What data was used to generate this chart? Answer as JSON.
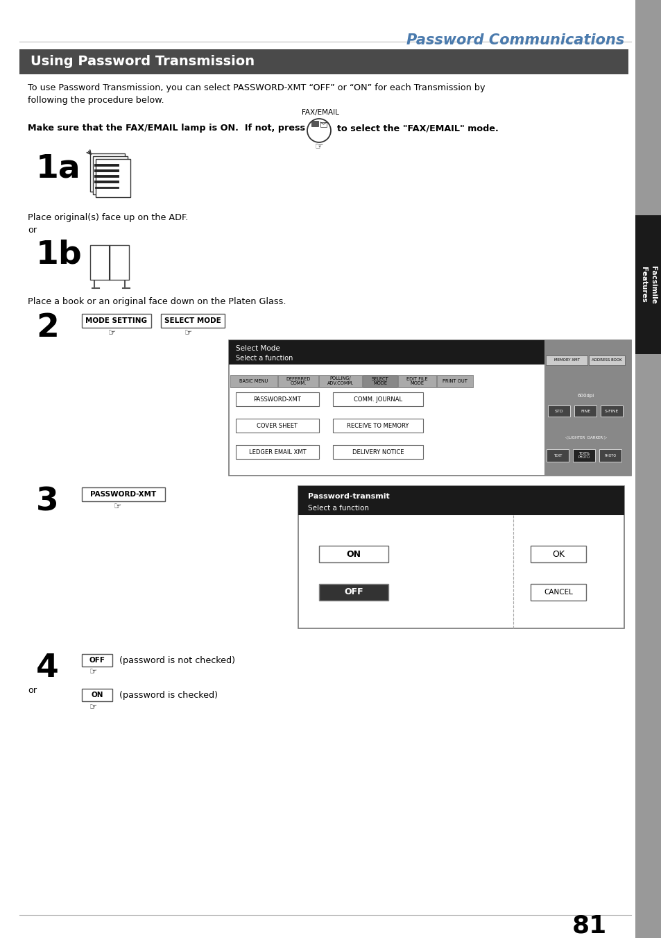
{
  "page_title": "Password Communications",
  "section_title": "Using Password Transmission",
  "body_text_1": "To use Password Transmission, you can select PASSWORD-XMT “OFF” or “ON” for each Transmission by\nfollowing the procedure below.",
  "fax_email_label": "FAX/EMAIL",
  "bold_instruction": "Make sure that the FAX/EMAIL lamp is ON.  If not, press",
  "bold_instruction_end": "to select the \"FAX/EMAIL\" mode.",
  "step1a_label": "1a",
  "step1a_text": "Place original(s) face up on the ADF.",
  "step1a_or": "or",
  "step1b_label": "1b",
  "step1b_text": "Place a book or an original face down on the Platen Glass.",
  "step2_label": "2",
  "step2_btn1": "MODE SETTING",
  "step2_btn2": "SELECT MODE",
  "step3_label": "3",
  "step3_btn": "PASSWORD-XMT",
  "step4_label": "4",
  "step4_btn_off": "OFF",
  "step4_text_off": "(password is not checked)",
  "step4_or": "or",
  "step4_btn_on": "ON",
  "step4_text_on": "(password is checked)",
  "page_number": "81",
  "tab_text_line1": "Facsimile",
  "tab_text_line2": "Features",
  "bg_color": "#ffffff",
  "title_color": "#4a7aad",
  "section_bg": "#4a4a4a",
  "section_text_color": "#ffffff",
  "tab_bg": "#1a1a1a",
  "tab_text_color": "#ffffff",
  "sidebar_color": "#999999"
}
